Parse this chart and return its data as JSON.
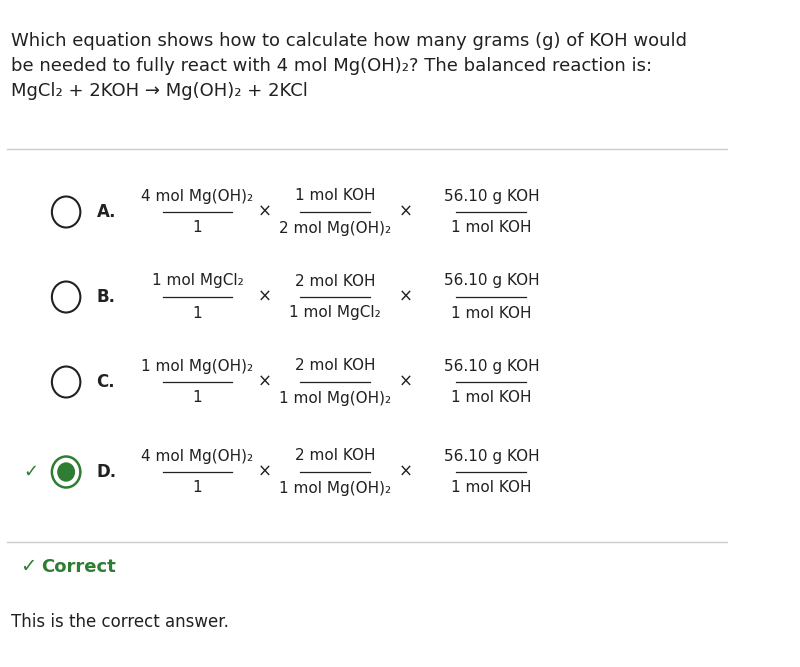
{
  "bg_color": "#ffffff",
  "question_text": "Which equation shows how to calculate how many grams (g) of KOH would\nbe needed to fully react with 4 mol Mg(OH)₂? The balanced reaction is:\nMgCl₂ + 2KOH → Mg(OH)₂ + 2KCl",
  "options": [
    {
      "label": "A.",
      "frac1_num": "4 mol Mg(OH)₂",
      "frac1_den": "1",
      "frac2_num": "1 mol KOH",
      "frac2_den": "2 mol Mg(OH)₂",
      "frac3_num": "56.10 g KOH",
      "frac3_den": "1 mol KOH",
      "selected": false,
      "correct": false
    },
    {
      "label": "B.",
      "frac1_num": "1 mol MgCl₂",
      "frac1_den": "1",
      "frac2_num": "2 mol KOH",
      "frac2_den": "1 mol MgCl₂",
      "frac3_num": "56.10 g KOH",
      "frac3_den": "1 mol KOH",
      "selected": false,
      "correct": false
    },
    {
      "label": "C.",
      "frac1_num": "1 mol Mg(OH)₂",
      "frac1_den": "1",
      "frac2_num": "2 mol KOH",
      "frac2_den": "1 mol Mg(OH)₂",
      "frac3_num": "56.10 g KOH",
      "frac3_den": "1 mol KOH",
      "selected": false,
      "correct": false
    },
    {
      "label": "D.",
      "frac1_num": "4 mol Mg(OH)₂",
      "frac1_den": "1",
      "frac2_num": "2 mol KOH",
      "frac2_den": "1 mol Mg(OH)₂",
      "frac3_num": "56.10 g KOH",
      "frac3_den": "1 mol KOH",
      "selected": true,
      "correct": true
    }
  ],
  "correct_label_color": "#2e7d32",
  "correct_text": "Correct",
  "footer_text": "This is the correct answer.",
  "separator_color": "#cccccc",
  "text_color": "#212121",
  "circle_color": "#212121",
  "check_color": "#2e7d32",
  "option_font_size": 11,
  "question_font_size": 13
}
